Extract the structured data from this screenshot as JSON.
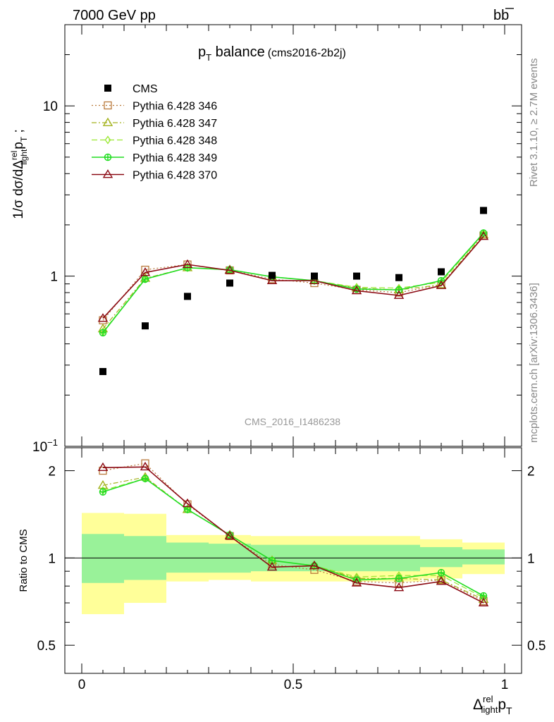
{
  "header": {
    "left": "7000 GeV pp",
    "right_base": "b",
    "right_bar": "b"
  },
  "side": {
    "rivet": "Rivet 3.1.10, ≥ 2.7M events",
    "site": "mcplots.cern.ch [arXiv:1306.3436]"
  },
  "chart_data": [
    {
      "type": "scatter",
      "title": {
        "p": "p",
        "sub": "T",
        "rest": " balance",
        "tag": "(cms2016-2b2j)"
      },
      "ylabel": {
        "pre": "1/σ dσ/dΔ",
        "sup": "rel",
        "sub": "light",
        "p": "p",
        "psub": "T",
        "post": " ;"
      },
      "watermark": "CMS_2016_I1486238",
      "yscale": "log",
      "ylim": [
        0.1,
        30
      ],
      "xlim": [
        -0.04,
        1.04
      ],
      "yticks": [
        {
          "v": 10,
          "base": "10",
          "exp": ""
        },
        {
          "v": 1,
          "base": "1",
          "exp": ""
        },
        {
          "v": 0.1,
          "base": "10",
          "exp": "−1"
        }
      ],
      "legend": [
        "CMS",
        "Pythia 6.428 346",
        "Pythia 6.428 347",
        "Pythia 6.428 348",
        "Pythia 6.428 349",
        "Pythia 6.428 370"
      ],
      "x": [
        0.05,
        0.15,
        0.25,
        0.35,
        0.45,
        0.55,
        0.65,
        0.75,
        0.85,
        0.95
      ],
      "data": {
        "name": "CMS",
        "values": [
          0.275,
          0.51,
          0.76,
          0.91,
          1.01,
          1.0,
          1.0,
          0.98,
          1.06,
          2.43
        ]
      },
      "series": [
        {
          "name": "Pythia 6.428 346",
          "color": "#b97a3c",
          "marker": "square",
          "dash": "2,3",
          "values": [
            0.55,
            1.09,
            1.17,
            1.08,
            0.96,
            0.91,
            0.83,
            0.8,
            0.89,
            1.73
          ]
        },
        {
          "name": "Pythia 6.428 347",
          "color": "#a3b21c",
          "marker": "triangle",
          "dash": "7,3,2,3",
          "values": [
            0.49,
            0.97,
            1.12,
            1.09,
            0.99,
            0.94,
            0.85,
            0.83,
            0.89,
            1.75
          ]
        },
        {
          "name": "Pythia 6.428 348",
          "color": "#99e830",
          "marker": "diamond",
          "dash": "8,4",
          "values": [
            0.47,
            0.96,
            1.12,
            1.09,
            0.99,
            0.94,
            0.86,
            0.85,
            0.92,
            1.78
          ]
        },
        {
          "name": "Pythia 6.428 349",
          "color": "#22dd22",
          "marker": "cross",
          "dash": "",
          "values": [
            0.465,
            0.96,
            1.12,
            1.09,
            0.99,
            0.94,
            0.84,
            0.83,
            0.94,
            1.79
          ]
        },
        {
          "name": "Pythia 6.428 370",
          "color": "#8b0a14",
          "marker": "triangle",
          "dash": "",
          "values": [
            0.565,
            1.05,
            1.17,
            1.08,
            0.94,
            0.94,
            0.82,
            0.77,
            0.88,
            1.71
          ]
        }
      ]
    },
    {
      "type": "line",
      "ylabel": "Ratio to CMS",
      "xlabel": {
        "d": "Δ",
        "sup": "rel",
        "sub": "light",
        "p": "p",
        "psub": "T"
      },
      "yscale": "log",
      "ylim": [
        0.4,
        2.4
      ],
      "xlim": [
        -0.04,
        1.04
      ],
      "xticks": [
        {
          "v": 0,
          "label": "0"
        },
        {
          "v": 0.5,
          "label": "0.5"
        },
        {
          "v": 1,
          "label": "1"
        }
      ],
      "yticks": [
        {
          "v": 2,
          "label": "2"
        },
        {
          "v": 1,
          "label": "1"
        },
        {
          "v": 0.5,
          "label": "0.5"
        }
      ],
      "bands": {
        "edges": [
          0,
          0.1,
          0.2,
          0.3,
          0.4,
          0.5,
          0.6,
          0.7,
          0.8,
          0.9,
          1.0
        ],
        "stat": [
          [
            0.82,
            1.21
          ],
          [
            0.84,
            1.19
          ],
          [
            0.89,
            1.13
          ],
          [
            0.89,
            1.12
          ],
          [
            0.9,
            1.11
          ],
          [
            0.9,
            1.11
          ],
          [
            0.9,
            1.11
          ],
          [
            0.9,
            1.11
          ],
          [
            0.93,
            1.09
          ],
          [
            0.95,
            1.07
          ]
        ],
        "syst": [
          [
            0.64,
            1.43
          ],
          [
            0.7,
            1.42
          ],
          [
            0.83,
            1.2
          ],
          [
            0.84,
            1.2
          ],
          [
            0.83,
            1.19
          ],
          [
            0.83,
            1.19
          ],
          [
            0.83,
            1.19
          ],
          [
            0.83,
            1.19
          ],
          [
            0.85,
            1.16
          ],
          [
            0.88,
            1.13
          ]
        ],
        "stat_color": "#99f299",
        "syst_color": "#ffff99"
      },
      "series": [
        {
          "name": "Pythia 6.428 346",
          "values": [
            2.0,
            2.12,
            1.53,
            1.19,
            0.95,
            0.91,
            0.83,
            0.82,
            0.84,
            0.71
          ]
        },
        {
          "name": "Pythia 6.428 347",
          "values": [
            1.78,
            1.9,
            1.47,
            1.2,
            0.98,
            0.94,
            0.85,
            0.85,
            0.84,
            0.72
          ]
        },
        {
          "name": "Pythia 6.428 348",
          "values": [
            1.71,
            1.88,
            1.47,
            1.2,
            0.98,
            0.94,
            0.86,
            0.87,
            0.87,
            0.73
          ]
        },
        {
          "name": "Pythia 6.428 349",
          "values": [
            1.69,
            1.88,
            1.47,
            1.2,
            0.98,
            0.94,
            0.84,
            0.85,
            0.89,
            0.74
          ]
        },
        {
          "name": "Pythia 6.428 370",
          "values": [
            2.05,
            2.06,
            1.54,
            1.19,
            0.93,
            0.94,
            0.82,
            0.79,
            0.83,
            0.7
          ]
        }
      ]
    }
  ]
}
